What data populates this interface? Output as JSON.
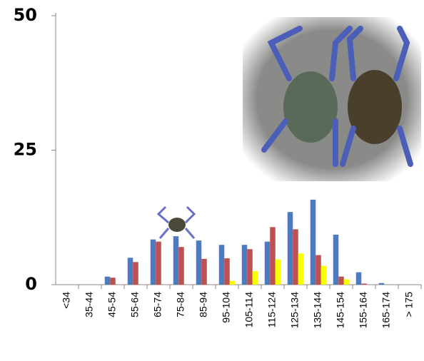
{
  "chart_data": {
    "type": "bar",
    "categories": [
      "<34",
      "35-44",
      "45-54",
      "55-64",
      "65-74",
      "75-84",
      "85-94",
      "95-104",
      "105-114",
      "115-124",
      "125-134",
      "135-144",
      "145-154",
      "155-164",
      "165-174",
      "> 175"
    ],
    "series": [
      {
        "color": "#4a7bc4",
        "values": [
          0,
          0,
          1.5,
          5,
          8.4,
          9,
          8.2,
          7.4,
          7.4,
          8,
          13.5,
          15.8,
          9.3,
          2.3,
          0.3,
          0
        ]
      },
      {
        "color": "#c0504d",
        "values": [
          0,
          0,
          1.3,
          4.2,
          8,
          7,
          4.8,
          4.9,
          6.6,
          10.7,
          10.3,
          5.5,
          1.5,
          0.2,
          0,
          0
        ]
      },
      {
        "color": "#ffff00",
        "values": [
          0,
          0,
          0,
          0,
          0,
          0,
          0,
          0.7,
          2.5,
          4.7,
          5.8,
          3.5,
          1.0,
          0,
          0,
          0
        ]
      }
    ],
    "ylim": [
      0,
      50
    ],
    "yticks": [
      0,
      25,
      50
    ]
  }
}
